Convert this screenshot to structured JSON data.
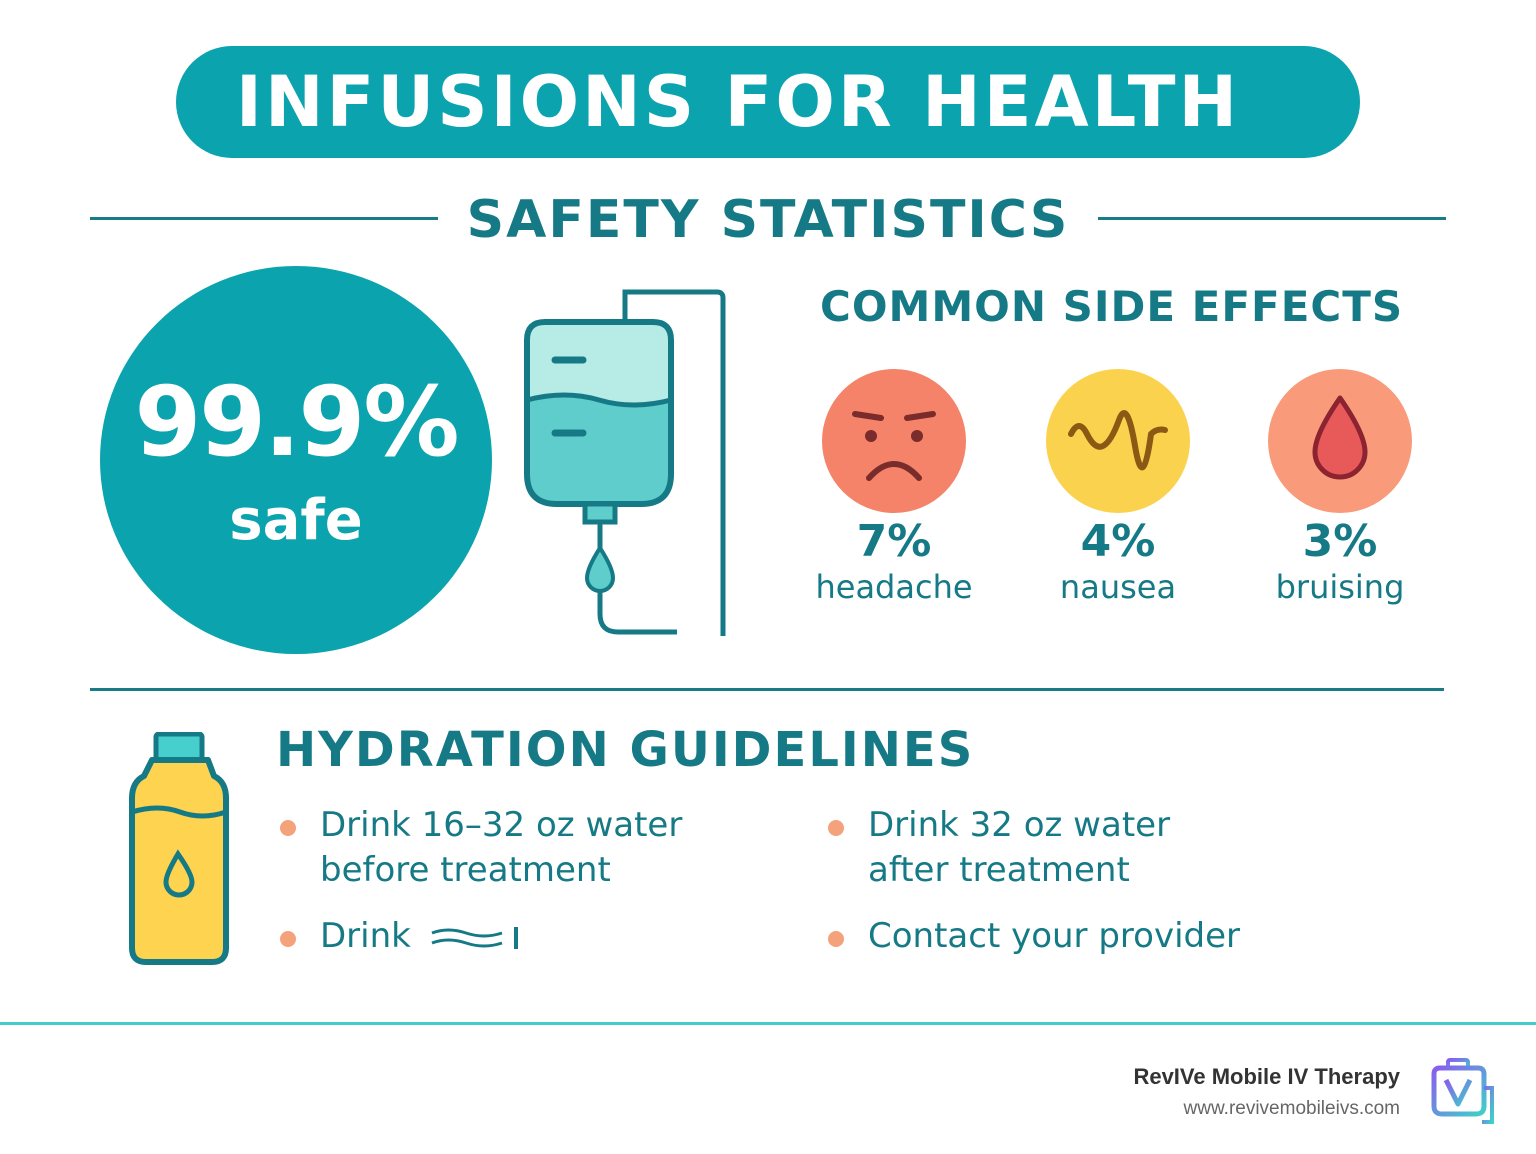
{
  "header": {
    "title": "INFUSIONS FOR HEALTH"
  },
  "safety": {
    "section_title": "SAFETY STATISTICS",
    "percent": "99.9%",
    "percent_label": "safe"
  },
  "side_effects": {
    "title": "COMMON SIDE EFFECTS",
    "items": [
      {
        "percent": "7%",
        "label": "headache",
        "icon": "frowning-face-icon",
        "color": "#f4836a"
      },
      {
        "percent": "4%",
        "label": "nausea",
        "icon": "nausea-wave-icon",
        "color": "#fbd24e"
      },
      {
        "percent": "3%",
        "label": "bruising",
        "icon": "blood-drop-icon",
        "color": "#f99a7a"
      }
    ]
  },
  "hydration": {
    "title": "HYDRATION GUIDELINES",
    "bullets": [
      {
        "line1": "Drink 16–32 oz water",
        "line2": "before treatment"
      },
      {
        "line1": "Drink 32 oz water",
        "line2": "after treatment"
      },
      {
        "line1": "Drink"
      },
      {
        "line1": "Contact your provider"
      }
    ]
  },
  "footer": {
    "brand": "RevIVe Mobile IV Therapy",
    "url": "www.revivemobileivs.com"
  },
  "colors": {
    "teal": "#0ba3ad",
    "dark_teal": "#157a86",
    "accent_line": "#44cccb",
    "bullet": "#f4a27c",
    "bottle_yellow": "#fdd34f"
  }
}
